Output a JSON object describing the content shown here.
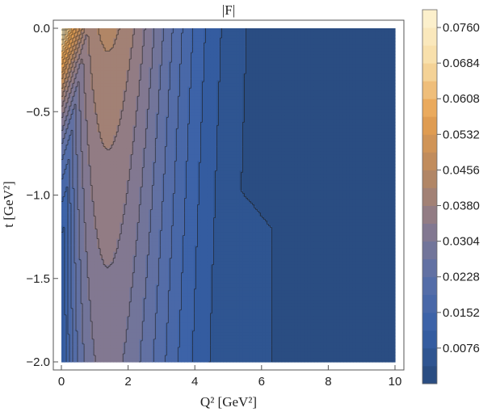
{
  "chart_data": {
    "type": "heatmap",
    "title": "|F|",
    "xlabel": "Q² [GeV²]",
    "ylabel": "t [GeV²]",
    "xlim": [
      0,
      10
    ],
    "ylim": [
      -2.0,
      0.0
    ],
    "x_ticks": [
      "0",
      "2",
      "4",
      "6",
      "8",
      "10"
    ],
    "y_ticks": [
      "0.0",
      "-0.5",
      "-1.0",
      "-1.5",
      "-2.0"
    ],
    "y_tick_labels": [
      "0.0",
      "−0.5",
      "−1.0",
      "−1.5",
      "−2.0"
    ],
    "x_tick_values": [
      0,
      2,
      4,
      6,
      8,
      10
    ],
    "y_tick_values": [
      0.0,
      -0.5,
      -1.0,
      -1.5,
      -2.0
    ],
    "colorbar": {
      "min": 0.0,
      "max": 0.0798,
      "tick_values": [
        0.0076,
        0.0152,
        0.0228,
        0.0304,
        0.038,
        0.0456,
        0.0532,
        0.0608,
        0.0684,
        0.076
      ],
      "tick_labels": [
        "0.0076",
        "0.0152",
        "0.0228",
        "0.0304",
        "0.0380",
        "0.0456",
        "0.0532",
        "0.0608",
        "0.0684",
        "0.0760"
      ],
      "level_count": 21,
      "colors": [
        "#27497a",
        "#3760a8",
        "#5a6fa8",
        "#8a7a8c",
        "#b9885e",
        "#e7a04f",
        "#f7dca4",
        "#fdf4d4"
      ]
    },
    "grid": false
  }
}
